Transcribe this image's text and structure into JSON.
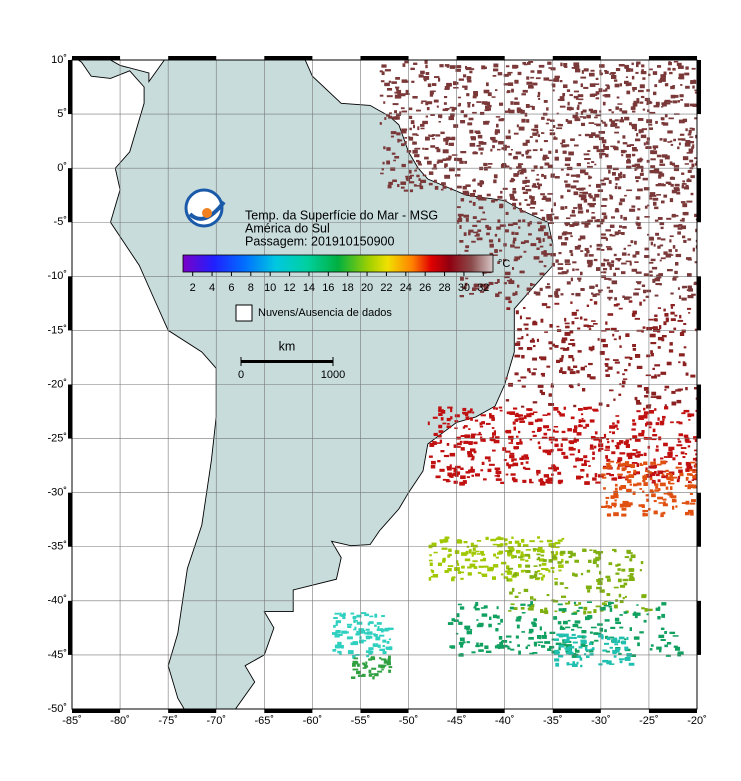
{
  "header": {
    "title": "Temp. da Superfície do Mar - MSG",
    "region": "América do Sul",
    "pass": "Passagem: 201910150900"
  },
  "colorbar": {
    "unit": "°C",
    "range": [
      1,
      33
    ],
    "ticks": [
      2,
      4,
      6,
      8,
      10,
      12,
      14,
      16,
      18,
      20,
      22,
      24,
      26,
      28,
      30,
      32
    ]
  },
  "legend": {
    "clouds": "Nuvens/Ausencia de dados"
  },
  "scale_bar": {
    "unit": "km",
    "ticks": [
      0,
      1000
    ]
  },
  "axes": {
    "lon_range": [
      -85,
      -20
    ],
    "lat_range": [
      -50,
      10
    ],
    "lon_ticks": [
      {
        "value": -85,
        "label": "-85˚"
      },
      {
        "value": -80,
        "label": "-80˚"
      },
      {
        "value": -75,
        "label": "-75˚"
      },
      {
        "value": -70,
        "label": "-70˚"
      },
      {
        "value": -65,
        "label": "-65˚"
      },
      {
        "value": -60,
        "label": "-60˚"
      },
      {
        "value": -55,
        "label": "-55˚"
      },
      {
        "value": -50,
        "label": "-50˚"
      },
      {
        "value": -45,
        "label": "-45˚"
      },
      {
        "value": -40,
        "label": "-40˚"
      },
      {
        "value": -35,
        "label": "-35˚"
      },
      {
        "value": -30,
        "label": "-30˚"
      },
      {
        "value": -25,
        "label": "-25˚"
      },
      {
        "value": -20,
        "label": "-20˚"
      }
    ],
    "lat_ticks": [
      {
        "value": 10,
        "label": "10˚"
      },
      {
        "value": 5,
        "label": "5˚"
      },
      {
        "value": 0,
        "label": "0˚"
      },
      {
        "value": -5,
        "label": "-5˚"
      },
      {
        "value": -10,
        "label": "-10˚"
      },
      {
        "value": -15,
        "label": "-15˚"
      },
      {
        "value": -20,
        "label": "-20˚"
      },
      {
        "value": -25,
        "label": "-25˚"
      },
      {
        "value": -30,
        "label": "-30˚"
      },
      {
        "value": -35,
        "label": "-35˚"
      },
      {
        "value": -40,
        "label": "-40˚"
      },
      {
        "value": -45,
        "label": "-45˚"
      },
      {
        "value": -50,
        "label": "-50˚"
      }
    ]
  }
}
